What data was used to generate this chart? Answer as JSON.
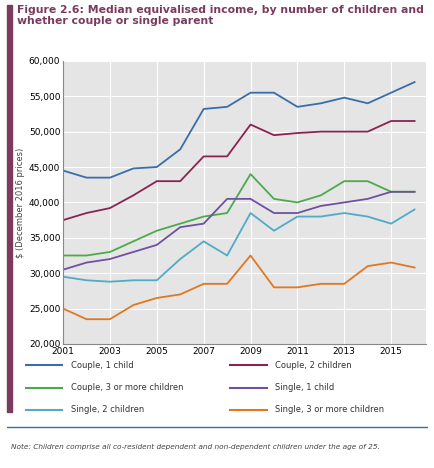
{
  "title": "Figure 2.6: Median equivalised income, by number of children and\nwhether couple or single parent",
  "ylabel": "$ (December 2016 prices)",
  "note": "Note: Children comprise all co-resident dependent and non-dependent children under the age of 25.",
  "years": [
    2001,
    2002,
    2003,
    2004,
    2005,
    2006,
    2007,
    2008,
    2009,
    2010,
    2011,
    2012,
    2013,
    2014,
    2015,
    2016
  ],
  "series": {
    "Couple, 1 child": {
      "color": "#3a6ea8",
      "values": [
        44500,
        43500,
        43500,
        44800,
        45000,
        47500,
        53200,
        53500,
        55500,
        55500,
        53500,
        54000,
        54800,
        54000,
        55500,
        57000
      ]
    },
    "Couple, 2 children": {
      "color": "#8b2252",
      "values": [
        37500,
        38500,
        39200,
        41000,
        43000,
        43000,
        46500,
        46500,
        51000,
        49500,
        49800,
        50000,
        50000,
        50000,
        51500,
        51500
      ]
    },
    "Couple, 3 or more children": {
      "color": "#4caa4c",
      "values": [
        32500,
        32500,
        33000,
        34500,
        36000,
        37000,
        38000,
        38500,
        44000,
        40500,
        40000,
        41000,
        43000,
        43000,
        41500,
        41500
      ]
    },
    "Single, 1 child": {
      "color": "#7050a0",
      "values": [
        30500,
        31500,
        32000,
        33000,
        34000,
        36500,
        37000,
        40500,
        40500,
        38500,
        38500,
        39500,
        40000,
        40500,
        41500,
        41500
      ]
    },
    "Single, 2 children": {
      "color": "#50aac8",
      "values": [
        29500,
        29000,
        28800,
        29000,
        29000,
        32000,
        34500,
        32500,
        38500,
        36000,
        38000,
        38000,
        38500,
        38000,
        37000,
        39000
      ]
    },
    "Single, 3 or more children": {
      "color": "#e07820",
      "values": [
        25000,
        23500,
        23500,
        25500,
        26500,
        27000,
        28500,
        28500,
        32500,
        28000,
        28000,
        28500,
        28500,
        31000,
        31500,
        30800
      ]
    }
  },
  "ylim": [
    20000,
    60000
  ],
  "yticks": [
    20000,
    25000,
    30000,
    35000,
    40000,
    45000,
    50000,
    55000,
    60000
  ],
  "xticks": [
    2001,
    2003,
    2005,
    2007,
    2009,
    2011,
    2013,
    2015
  ],
  "bg_color": "#e5e5e5",
  "title_color": "#7b3b5e",
  "border_color": "#7b3b5e",
  "legend_order": [
    "Couple, 1 child",
    "Couple, 2 children",
    "Couple, 3 or more children",
    "Single, 1 child",
    "Single, 2 children",
    "Single, 3 or more children"
  ]
}
